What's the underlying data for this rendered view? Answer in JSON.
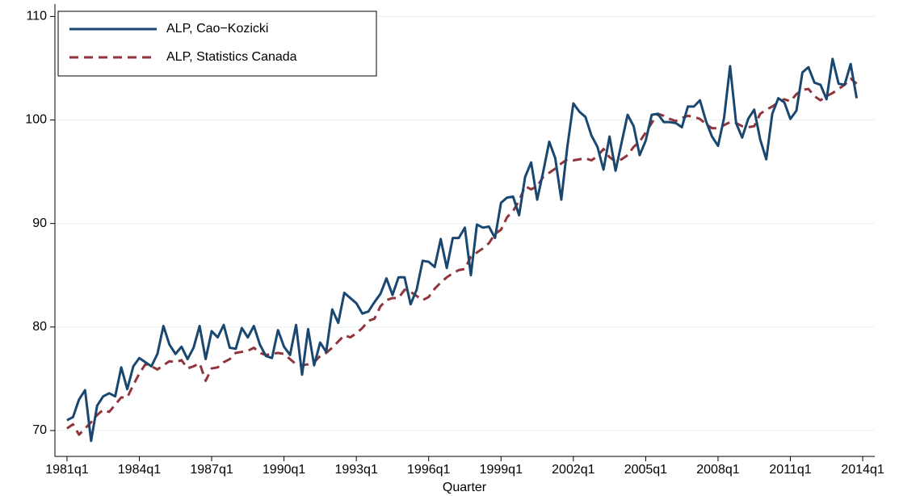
{
  "chart_data": {
    "type": "line",
    "x_label": "Quarter",
    "x": [
      "1981q1",
      "1981q2",
      "1981q3",
      "1981q4",
      "1982q1",
      "1982q2",
      "1982q3",
      "1982q4",
      "1983q1",
      "1983q2",
      "1983q3",
      "1983q4",
      "1984q1",
      "1984q2",
      "1984q3",
      "1984q4",
      "1985q1",
      "1985q2",
      "1985q3",
      "1985q4",
      "1986q1",
      "1986q2",
      "1986q3",
      "1986q4",
      "1987q1",
      "1987q2",
      "1987q3",
      "1987q4",
      "1988q1",
      "1988q2",
      "1988q3",
      "1988q4",
      "1989q1",
      "1989q2",
      "1989q3",
      "1989q4",
      "1990q1",
      "1990q2",
      "1990q3",
      "1990q4",
      "1991q1",
      "1991q2",
      "1991q3",
      "1991q4",
      "1992q1",
      "1992q2",
      "1992q3",
      "1992q4",
      "1993q1",
      "1993q2",
      "1993q3",
      "1993q4",
      "1994q1",
      "1994q2",
      "1994q3",
      "1994q4",
      "1995q1",
      "1995q2",
      "1995q3",
      "1995q4",
      "1996q1",
      "1996q2",
      "1996q3",
      "1996q4",
      "1997q1",
      "1997q2",
      "1997q3",
      "1997q4",
      "1998q1",
      "1998q2",
      "1998q3",
      "1998q4",
      "1999q1",
      "1999q2",
      "1999q3",
      "1999q4",
      "2000q1",
      "2000q2",
      "2000q3",
      "2000q4",
      "2001q1",
      "2001q2",
      "2001q3",
      "2001q4",
      "2002q1",
      "2002q2",
      "2002q3",
      "2002q4",
      "2003q1",
      "2003q2",
      "2003q3",
      "2003q4",
      "2004q1",
      "2004q2",
      "2004q3",
      "2004q4",
      "2005q1",
      "2005q2",
      "2005q3",
      "2005q4",
      "2006q1",
      "2006q2",
      "2006q3",
      "2006q4",
      "2007q1",
      "2007q2",
      "2007q3",
      "2007q4",
      "2008q1",
      "2008q2",
      "2008q3",
      "2008q4",
      "2009q1",
      "2009q2",
      "2009q3",
      "2009q4",
      "2010q1",
      "2010q2",
      "2010q3",
      "2010q4",
      "2011q1",
      "2011q2",
      "2011q3",
      "2011q4",
      "2012q1",
      "2012q2",
      "2012q3",
      "2012q4",
      "2013q1",
      "2013q2",
      "2013q3",
      "2013q4"
    ],
    "series": [
      {
        "name": "ALP, Cao−Kozicki",
        "color": "#1a476f",
        "dash": "solid",
        "values": [
          71.0,
          71.3,
          73.0,
          73.9,
          69.0,
          72.4,
          73.3,
          73.6,
          73.3,
          76.1,
          74.0,
          76.2,
          77.0,
          76.6,
          76.2,
          77.4,
          80.1,
          78.3,
          77.4,
          78.1,
          76.9,
          78.0,
          80.1,
          76.9,
          79.6,
          79.0,
          80.2,
          78.0,
          77.9,
          79.9,
          79.0,
          80.1,
          78.3,
          77.2,
          77.0,
          79.7,
          78.1,
          77.3,
          80.2,
          75.4,
          79.8,
          76.3,
          78.5,
          77.6,
          81.7,
          80.4,
          83.3,
          82.8,
          82.3,
          81.3,
          81.5,
          82.4,
          83.2,
          84.7,
          83.1,
          84.8,
          84.8,
          82.2,
          83.6,
          86.4,
          86.3,
          85.8,
          88.5,
          85.7,
          88.6,
          88.6,
          89.6,
          85.0,
          89.9,
          89.6,
          89.7,
          88.6,
          92.0,
          92.5,
          92.6,
          90.8,
          94.5,
          95.9,
          92.3,
          95.0,
          97.9,
          96.3,
          92.3,
          97.4,
          101.6,
          100.8,
          100.3,
          98.5,
          97.4,
          95.2,
          98.4,
          95.1,
          97.8,
          100.5,
          99.4,
          96.6,
          98.0,
          100.5,
          100.6,
          99.8,
          99.8,
          99.7,
          99.3,
          101.3,
          101.3,
          101.9,
          99.9,
          98.4,
          97.5,
          100.2,
          105.2,
          99.7,
          98.3,
          100.1,
          101.0,
          98.1,
          96.2,
          100.6,
          102.1,
          101.7,
          100.1,
          100.9,
          104.6,
          105.1,
          103.6,
          103.4,
          102.0,
          105.9,
          103.5,
          103.4,
          105.4,
          102.1
        ]
      },
      {
        "name": "ALP, Statistics Canada",
        "color": "#90353b",
        "dash": "dashed",
        "values": [
          70.2,
          70.6,
          69.6,
          70.2,
          70.8,
          71.5,
          72.0,
          71.8,
          72.5,
          73.2,
          73.2,
          74.4,
          75.5,
          76.4,
          76.2,
          75.9,
          76.3,
          76.7,
          76.6,
          76.8,
          76.0,
          76.2,
          76.5,
          74.8,
          76.0,
          76.1,
          76.6,
          76.9,
          77.5,
          77.6,
          77.7,
          78.0,
          77.5,
          77.3,
          77.4,
          77.5,
          77.4,
          76.9,
          76.4,
          76.3,
          76.4,
          76.6,
          77.2,
          77.5,
          78.0,
          78.6,
          79.2,
          79.0,
          79.4,
          79.9,
          80.6,
          80.8,
          82.0,
          82.6,
          82.8,
          82.8,
          83.6,
          83.4,
          83.0,
          82.6,
          82.9,
          83.7,
          84.3,
          84.8,
          85.2,
          85.5,
          85.6,
          86.8,
          87.2,
          87.6,
          88.1,
          89.0,
          89.4,
          90.6,
          91.2,
          92.2,
          93.6,
          93.3,
          93.6,
          94.5,
          94.9,
          95.3,
          95.8,
          96.2,
          96.1,
          96.2,
          96.3,
          96.1,
          96.5,
          97.2,
          96.4,
          96.0,
          96.2,
          96.6,
          97.4,
          97.9,
          98.8,
          99.7,
          100.6,
          100.4,
          100.1,
          99.9,
          100.2,
          100.4,
          100.3,
          100.1,
          99.6,
          99.2,
          99.2,
          99.5,
          99.8,
          99.7,
          99.4,
          99.3,
          99.4,
          100.6,
          101.0,
          101.3,
          101.7,
          102.0,
          101.8,
          102.5,
          102.9,
          103.0,
          102.3,
          101.9,
          102.3,
          102.6,
          103.0,
          103.4,
          104.0,
          103.5
        ]
      }
    ],
    "xlim": [
      "1980q3",
      "2014q3"
    ],
    "xticks": [
      "1981q1",
      "1984q1",
      "1987q1",
      "1990q1",
      "1993q1",
      "1996q1",
      "1999q1",
      "2002q1",
      "2005q1",
      "2008q1",
      "2011q1",
      "2014q1"
    ],
    "ylim": [
      67.5,
      111.2
    ],
    "yticks": [
      70,
      80,
      90,
      100,
      110
    ],
    "grid": true,
    "legend": "top-left"
  }
}
